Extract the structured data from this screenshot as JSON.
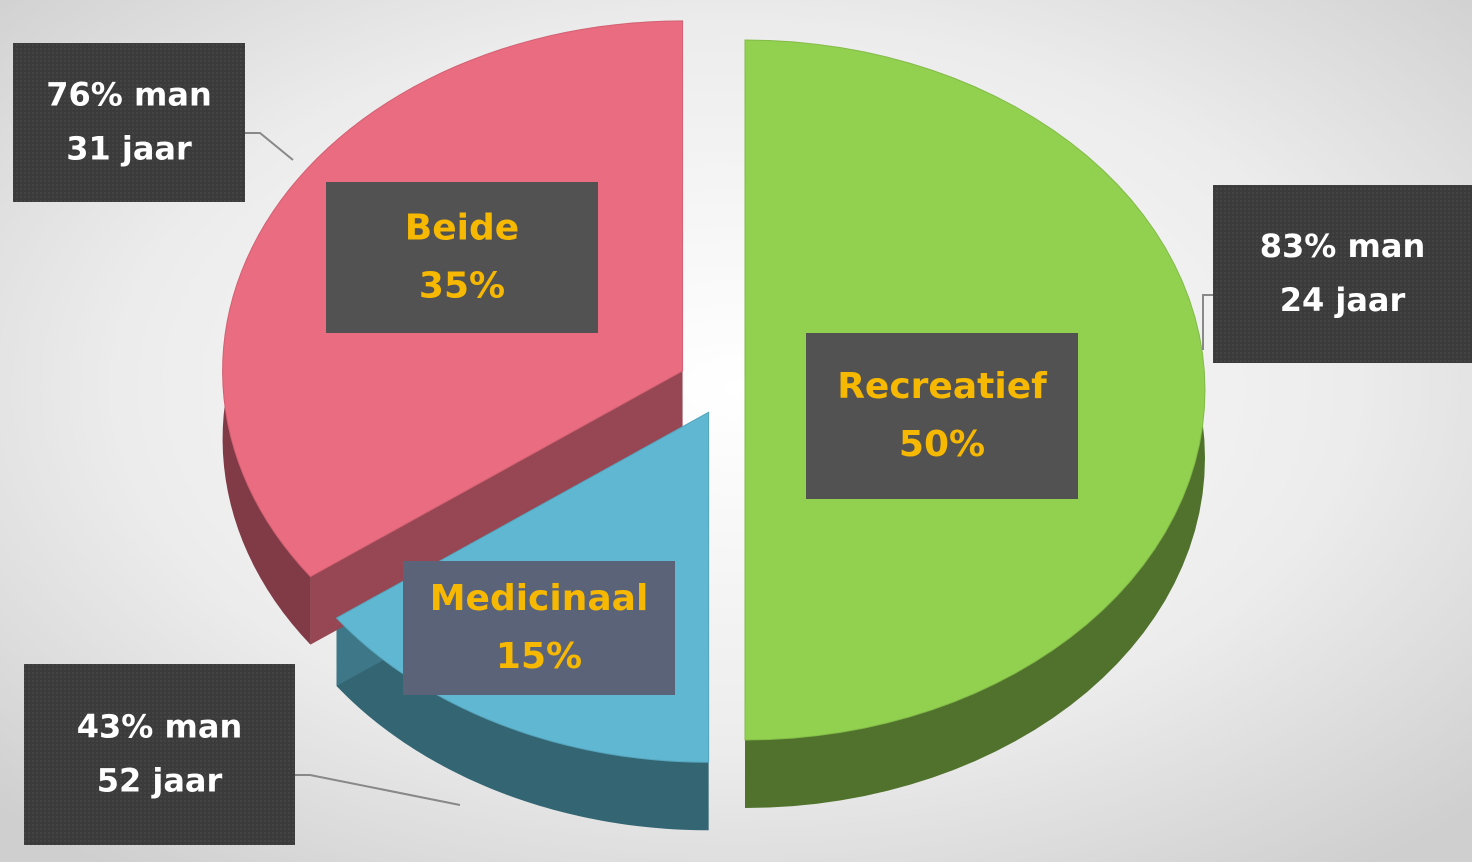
{
  "chart_data": {
    "type": "pie",
    "categories": [
      "Recreatief",
      "Medicinaal",
      "Beide"
    ],
    "values": [
      50,
      15,
      35
    ],
    "value_labels": [
      "50%",
      "15%",
      "35%"
    ],
    "colors": [
      "#92d050",
      "#5fb7d1",
      "#e96c80"
    ],
    "annotations": [
      [
        "83% man",
        "24 jaar"
      ],
      [
        "43% man",
        "52 jaar"
      ],
      [
        "76% man",
        "31 jaar"
      ]
    ]
  }
}
